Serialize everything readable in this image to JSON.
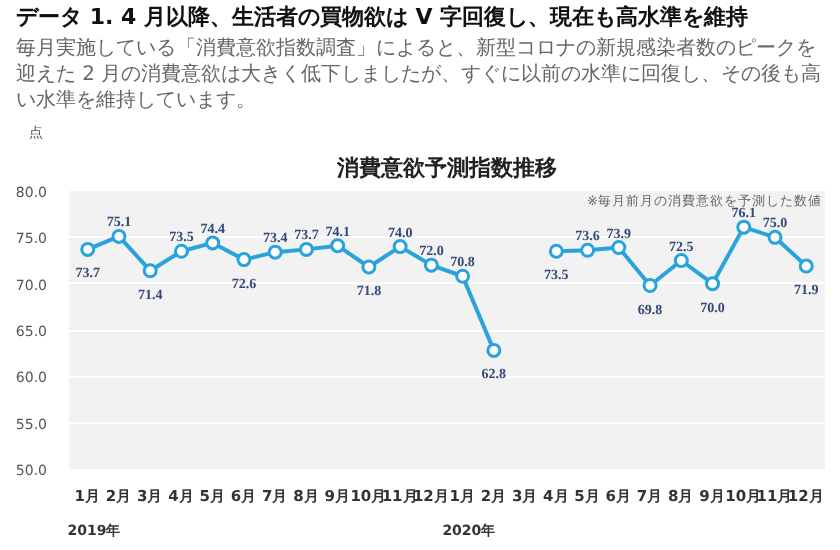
{
  "chart_data": {
    "type": "line",
    "title": "消費意欲予測指数推移",
    "categories": [
      "1月",
      "2月",
      "3月",
      "4月",
      "5月",
      "6月",
      "7月",
      "8月",
      "9月",
      "10月",
      "11月",
      "12月",
      "1月",
      "2月",
      "3月",
      "4月",
      "5月",
      "6月",
      "7月",
      "8月",
      "9月",
      "10月",
      "11月",
      "12月"
    ],
    "series": [
      {
        "color": "#29a3dc",
        "values": [
          73.7,
          75.1,
          71.4,
          73.5,
          74.4,
          72.6,
          73.4,
          73.7,
          74.1,
          71.8,
          74.0,
          72.0,
          70.8,
          62.8,
          null,
          73.5,
          73.6,
          73.9,
          69.8,
          72.5,
          70.0,
          76.1,
          75.0,
          71.9
        ]
      }
    ],
    "ylabel": "点",
    "ylim": [
      50,
      80
    ],
    "yticks": [
      {
        "value": 50,
        "label": "50.0"
      },
      {
        "value": 55,
        "label": "55.0"
      },
      {
        "value": 60,
        "label": "60.0"
      },
      {
        "value": 65,
        "label": "65.0"
      },
      {
        "value": 70,
        "label": "70.0"
      },
      {
        "value": 75,
        "label": "75.0"
      },
      {
        "value": 80,
        "label": "80.0"
      }
    ],
    "value_labels": [
      "73.7",
      "75.1",
      "71.4",
      "73.5",
      "74.4",
      "72.6",
      "73.4",
      "73.7",
      "74.1",
      "71.8",
      "74.0",
      "72.0",
      "70.8",
      "62.8",
      null,
      "73.5",
      "73.6",
      "73.9",
      "69.8",
      "72.5",
      "70.0",
      "76.1",
      "75.0",
      "71.9"
    ],
    "grid": "y",
    "marker": "circle",
    "annotations": [
      "データ 1. 4 月以降、生活者の買物欲は V 字回復し、現在も高水準を維持",
      "毎月実施している「消費意欲指数調査」によると、新型コロナの新規感染者数のピークを迎えた 2 月の消費意欲は大きく低下しましたが、すぐに以前の水準に回復し、その後も高い水準を維持しています。",
      "※毎月前月の消費意欲を予測した数値",
      "2019年",
      "2020年"
    ]
  }
}
